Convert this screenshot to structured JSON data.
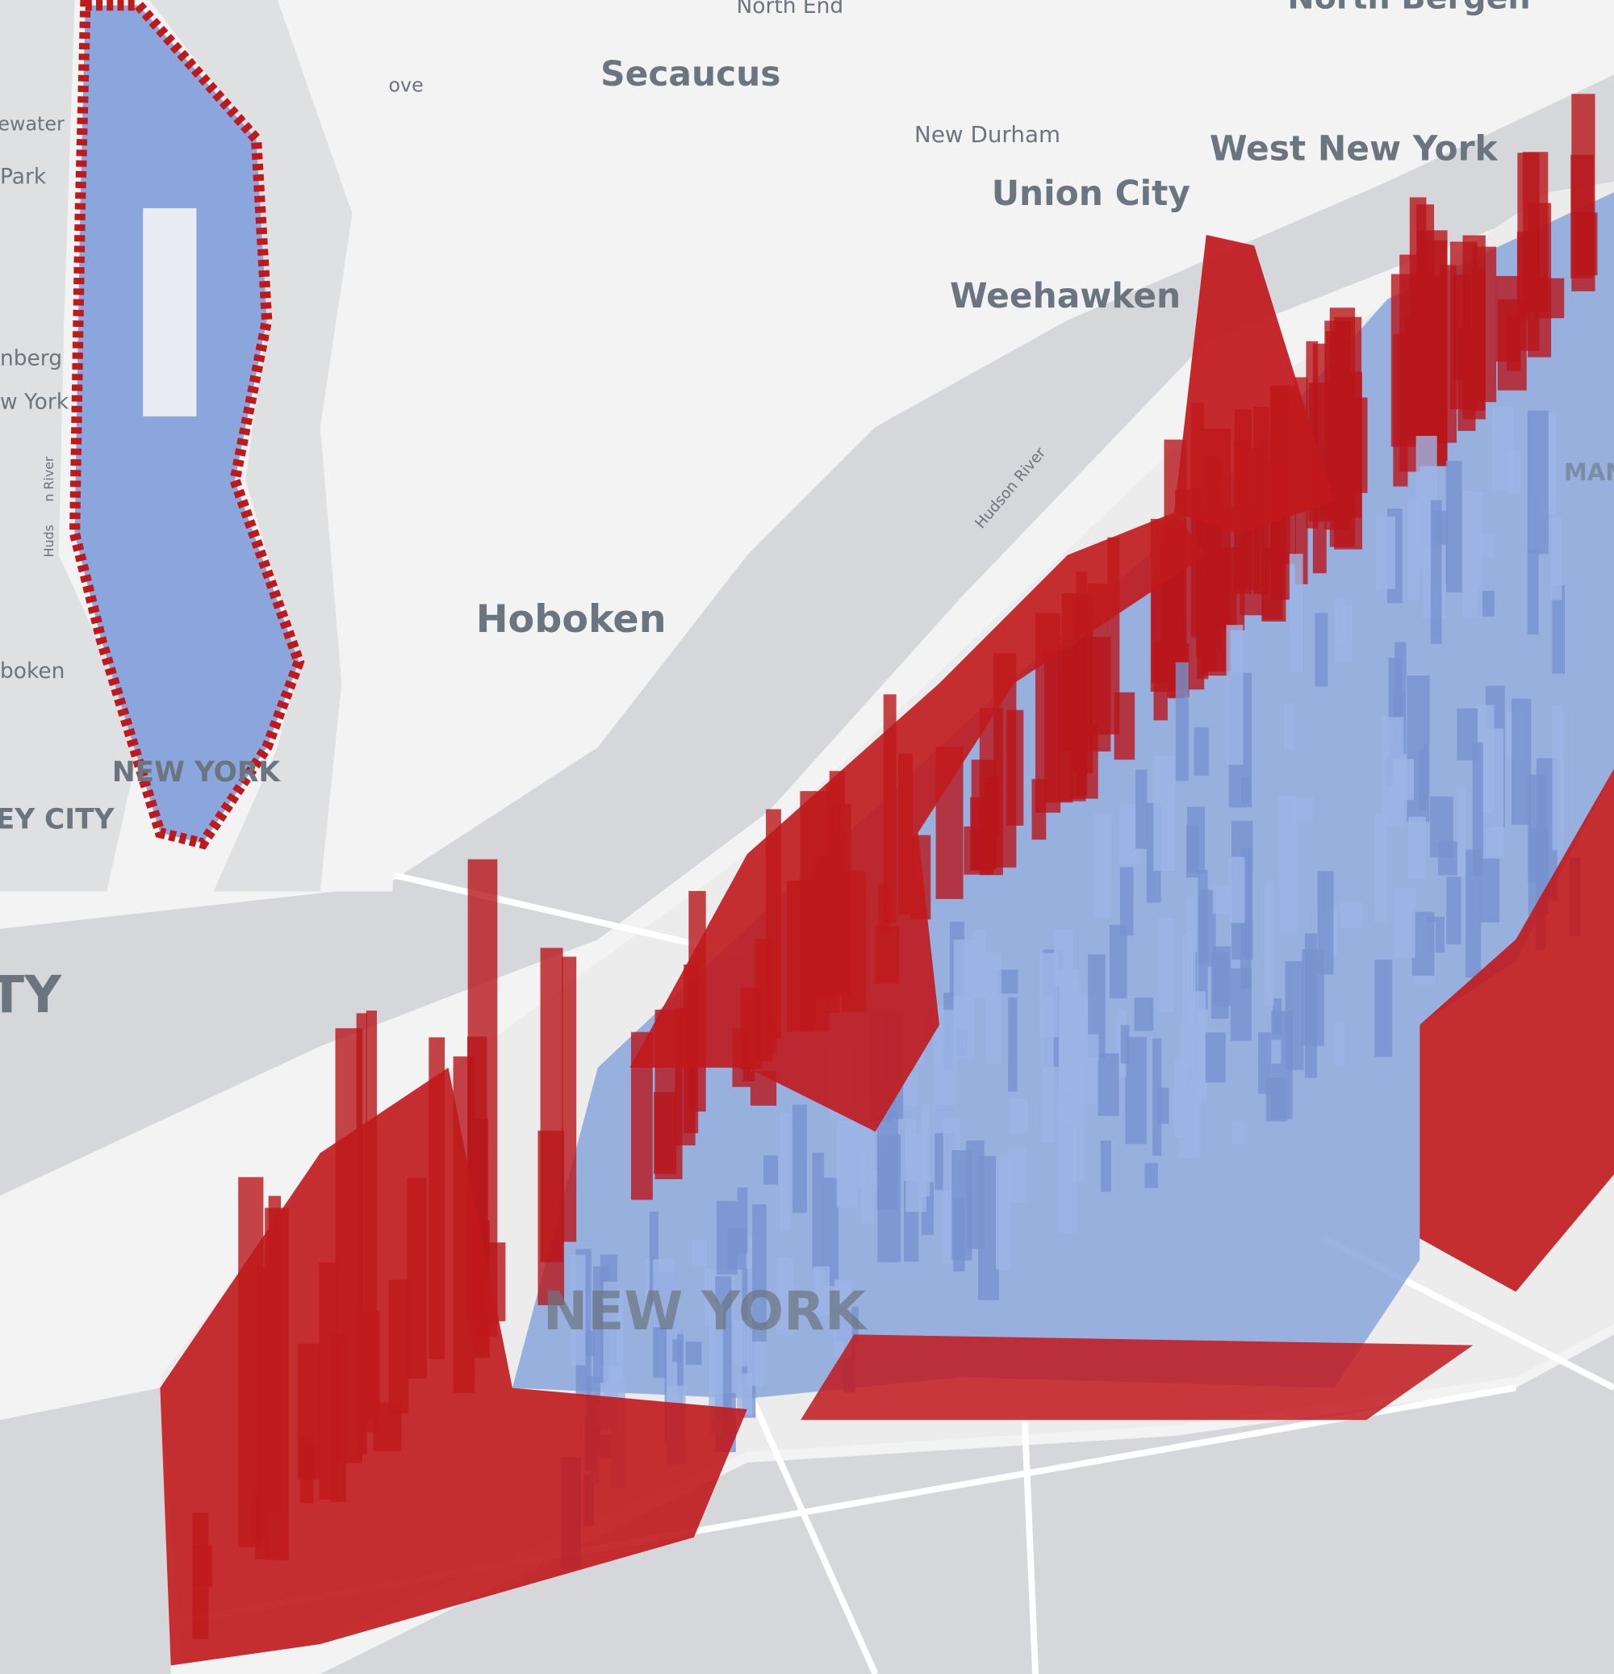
{
  "main_map": {
    "labels": [
      "North End",
      "North Bergen",
      "Secaucus",
      "New Durham",
      "West New York",
      "Union City",
      "Weehawken",
      "Hudson River",
      "Hoboken",
      "NEW YORK",
      "MANH",
      "TY"
    ]
  },
  "inset_map": {
    "labels": [
      "ove",
      "ewater",
      "Park",
      "nberg",
      "w York",
      "Huds",
      "n River",
      "boken",
      "NEW YORK",
      "EY CITY"
    ]
  }
}
